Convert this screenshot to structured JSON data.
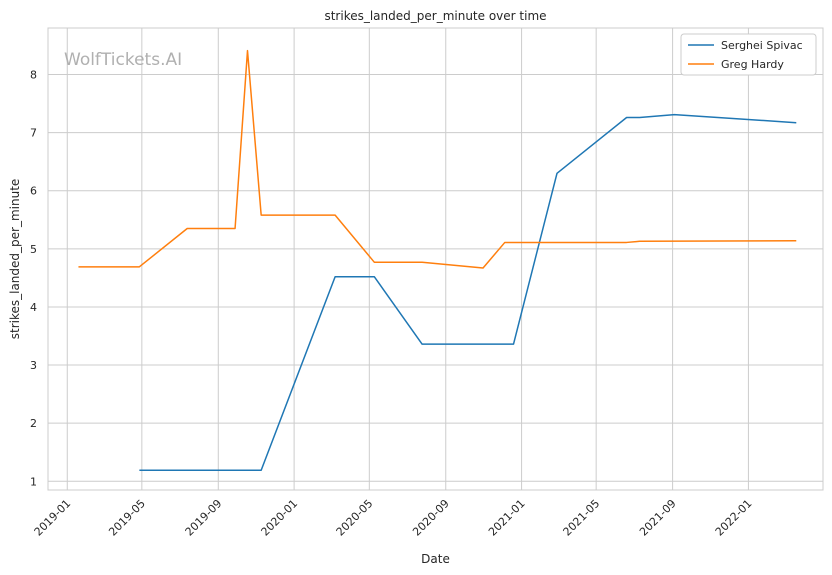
{
  "chart_data": {
    "type": "line",
    "title": "strikes_landed_per_minute over time",
    "xlabel": "Date",
    "ylabel": "strikes_landed_per_minute",
    "watermark": "WolfTickets.AI",
    "x_ticks": [
      "2019-01",
      "2019-05",
      "2019-09",
      "2020-01",
      "2020-05",
      "2020-09",
      "2021-01",
      "2021-05",
      "2021-09",
      "2022-01"
    ],
    "y_ticks": [
      1,
      2,
      3,
      4,
      5,
      6,
      7,
      8
    ],
    "xlim": [
      "2018-12-01",
      "2022-05-01"
    ],
    "ylim": [
      0.85,
      8.8
    ],
    "grid": true,
    "legend_position": "top-right",
    "series": [
      {
        "name": "Serghei Spivac",
        "color": "#1f77b4",
        "points": [
          {
            "x": "2019-04-27",
            "y": 1.19
          },
          {
            "x": "2019-11-09",
            "y": 1.19
          },
          {
            "x": "2020-03-07",
            "y": 4.52
          },
          {
            "x": "2020-05-09",
            "y": 4.52
          },
          {
            "x": "2020-07-25",
            "y": 3.36
          },
          {
            "x": "2020-12-19",
            "y": 3.36
          },
          {
            "x": "2021-02-27",
            "y": 6.3
          },
          {
            "x": "2021-06-19",
            "y": 7.26
          },
          {
            "x": "2021-07-10",
            "y": 7.26
          },
          {
            "x": "2021-09-04",
            "y": 7.31
          },
          {
            "x": "2022-03-19",
            "y": 7.17
          }
        ]
      },
      {
        "name": "Greg Hardy",
        "color": "#ff7f0e",
        "points": [
          {
            "x": "2019-01-19",
            "y": 4.69
          },
          {
            "x": "2019-04-27",
            "y": 4.69
          },
          {
            "x": "2019-07-13",
            "y": 5.35
          },
          {
            "x": "2019-09-28",
            "y": 5.35
          },
          {
            "x": "2019-10-18",
            "y": 8.41
          },
          {
            "x": "2019-11-09",
            "y": 5.58
          },
          {
            "x": "2020-03-07",
            "y": 5.58
          },
          {
            "x": "2020-05-09",
            "y": 4.77
          },
          {
            "x": "2020-07-25",
            "y": 4.77
          },
          {
            "x": "2020-10-31",
            "y": 4.67
          },
          {
            "x": "2020-12-05",
            "y": 5.11
          },
          {
            "x": "2021-06-19",
            "y": 5.11
          },
          {
            "x": "2021-07-10",
            "y": 5.13
          },
          {
            "x": "2022-03-19",
            "y": 5.14
          }
        ]
      }
    ]
  }
}
